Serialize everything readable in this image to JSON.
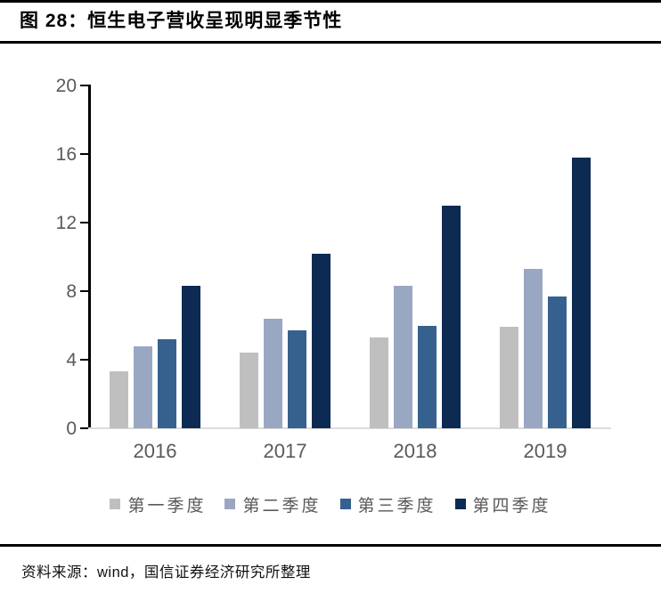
{
  "header": {
    "title": "图 28：恒生电子营收呈现明显季节性"
  },
  "footer": {
    "source": "资料来源：wind，国信证券经济研究所整理"
  },
  "chart_data": {
    "type": "bar",
    "title": "恒生电子营收呈现明显季节性",
    "figure_label": "图 28",
    "categories": [
      "2016",
      "2017",
      "2018",
      "2019"
    ],
    "series": [
      {
        "name": "第一季度",
        "color": "#bfbfbf",
        "values": [
          3.3,
          4.4,
          5.3,
          5.9
        ]
      },
      {
        "name": "第二季度",
        "color": "#9aa7c3",
        "values": [
          4.8,
          6.4,
          8.3,
          9.3
        ]
      },
      {
        "name": "第三季度",
        "color": "#36618e",
        "values": [
          5.2,
          5.7,
          6.0,
          7.7
        ]
      },
      {
        "name": "第四季度",
        "color": "#0d2a52",
        "values": [
          8.3,
          10.2,
          13.0,
          15.8
        ]
      }
    ],
    "ylim": [
      0,
      20
    ],
    "yticks": [
      0,
      4,
      8,
      12,
      16,
      20
    ],
    "grid": false,
    "legend_position": "bottom",
    "axis_text_color": "#595959"
  }
}
